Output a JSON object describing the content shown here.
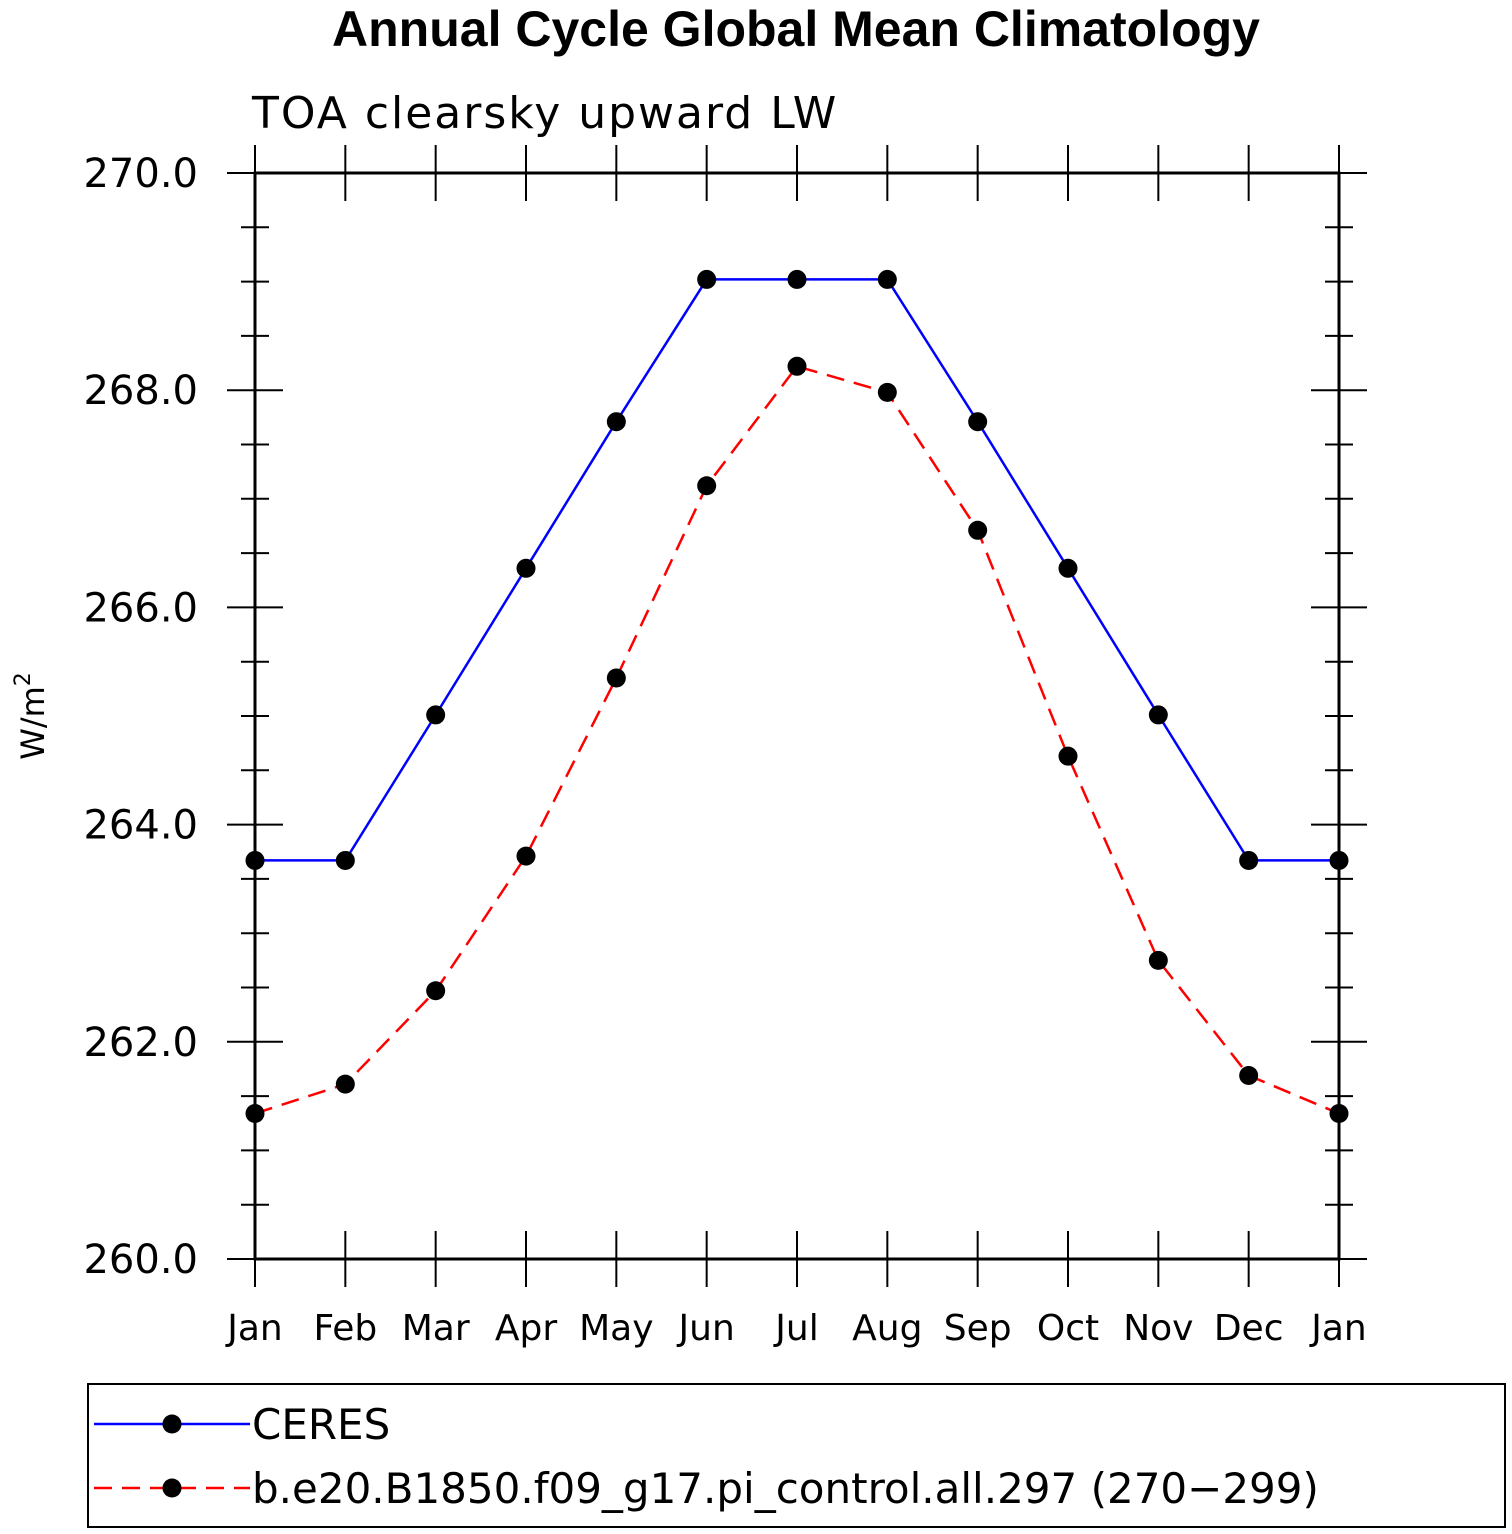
{
  "chart_data": {
    "type": "line",
    "title": "Annual Cycle Global Mean Climatology",
    "subtitle": "TOA clearsky upward LW",
    "ylabel": "W/m",
    "ylabel_sup": "2",
    "xlabel": "",
    "categories": [
      "Jan",
      "Feb",
      "Mar",
      "Apr",
      "May",
      "Jun",
      "Jul",
      "Aug",
      "Sep",
      "Oct",
      "Nov",
      "Dec",
      "Jan"
    ],
    "ylim": [
      260.0,
      270.0
    ],
    "yticks": [
      "260.0",
      "262.0",
      "264.0",
      "266.0",
      "268.0",
      "270.0"
    ],
    "grid": false,
    "legend_position": "bottom",
    "series": [
      {
        "name": "CERES",
        "color": "#0000ff",
        "dash": "solid",
        "values": [
          263.67,
          263.67,
          265.01,
          266.36,
          267.71,
          269.02,
          269.02,
          269.02,
          267.71,
          266.36,
          265.01,
          263.67,
          263.67
        ]
      },
      {
        "name": "b.e20.B1850.f09_g17.pi_control.all.297 (270−299)",
        "color": "#ff0000",
        "dash": "dashed",
        "values": [
          261.34,
          261.61,
          262.47,
          263.71,
          265.35,
          267.12,
          268.22,
          267.98,
          266.71,
          264.63,
          262.75,
          261.69,
          261.34
        ]
      }
    ]
  }
}
